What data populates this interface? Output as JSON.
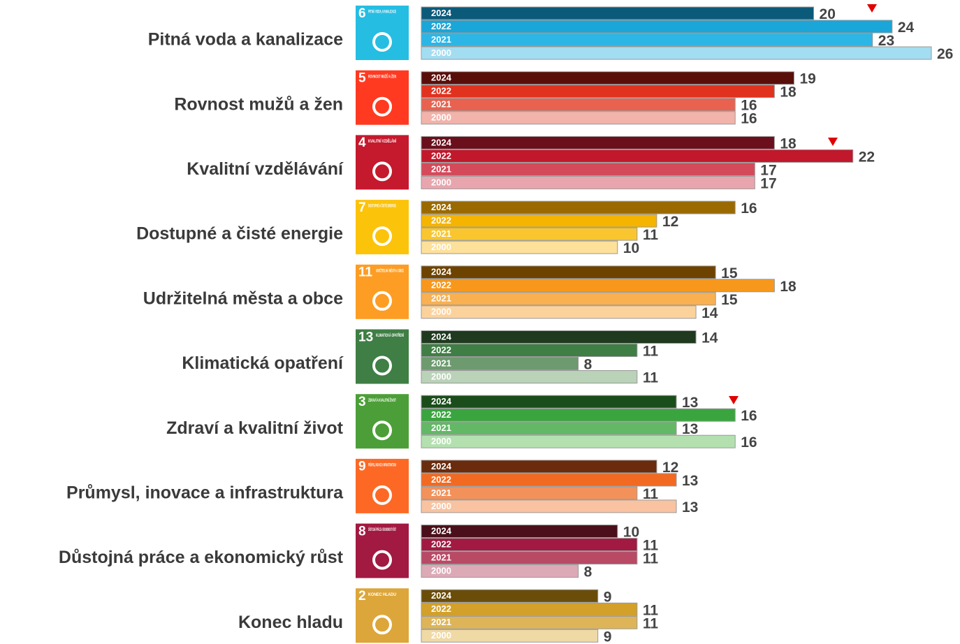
{
  "chart_data": {
    "type": "bar",
    "orientation": "horizontal",
    "categories": [
      "Pitná voda a kanalizace",
      "Rovnost mužů a žen",
      "Kvalitní vzdělávání",
      "Dostupné a čisté energie",
      "Udržitelná města a obce",
      "Klimatická opatření",
      "Zdraví a kvalitní život",
      "Průmysl, inovace a infrastruktura",
      "Důstojná práce a ekonomický růst",
      "Konec hladu"
    ],
    "series": [
      {
        "name": "2024",
        "values": [
          20,
          19,
          18,
          16,
          15,
          14,
          13,
          12,
          10,
          9
        ]
      },
      {
        "name": "2022",
        "values": [
          24,
          18,
          22,
          12,
          18,
          11,
          16,
          13,
          11,
          11
        ]
      },
      {
        "name": "2021",
        "values": [
          23,
          16,
          17,
          11,
          15,
          8,
          13,
          11,
          11,
          11
        ]
      },
      {
        "name": "2000",
        "values": [
          26,
          16,
          17,
          10,
          14,
          11,
          16,
          13,
          8,
          9
        ]
      }
    ],
    "colors": [
      [
        "#0b5a7a",
        "#1aa6d8",
        "#2cb6e6",
        "#a3ddf2"
      ],
      [
        "#5a0e0a",
        "#e0321f",
        "#e8624f",
        "#f2b3aa"
      ],
      [
        "#6b0f1c",
        "#c2182c",
        "#d44a5a",
        "#e8a5ad"
      ],
      [
        "#9a6a00",
        "#f5b400",
        "#f9c630",
        "#fde09a"
      ],
      [
        "#6e4300",
        "#f7981d",
        "#f9b050",
        "#fcd29c"
      ],
      [
        "#1f3a1f",
        "#3f7e44",
        "#6d9a6e",
        "#b9d2b8"
      ],
      [
        "#1a4d1a",
        "#3aa53e",
        "#62b865",
        "#b4e0b0"
      ],
      [
        "#6a2c0c",
        "#f26a22",
        "#f3915a",
        "#f9c3a1"
      ],
      [
        "#4a0f1a",
        "#a21942",
        "#b84a65",
        "#dcaab6"
      ],
      [
        "#6b4d0a",
        "#d3a029",
        "#ddb558",
        "#efd9a5"
      ]
    ],
    "icons": [
      {
        "number": "6",
        "text": "PITNÁ VODA, KANALIZACE",
        "color": "#26bde2"
      },
      {
        "number": "5",
        "text": "ROVNOST MUŽŮ A ŽEN",
        "color": "#ff3a21"
      },
      {
        "number": "4",
        "text": "KVALITNÍ VZDĚLÁNÍ",
        "color": "#c5192d"
      },
      {
        "number": "7",
        "text": "DOSTUPNÉ A ČISTÉ ENERGIE",
        "color": "#fcc30b"
      },
      {
        "number": "11",
        "text": "UDRŽITELNÁ MĚSTA A OBCE",
        "color": "#fd9d24"
      },
      {
        "number": "13",
        "text": "KLIMATICKÁ OPATŘENÍ",
        "color": "#3f7e44"
      },
      {
        "number": "3",
        "text": "ZDRAVÍ A KVALITNÍ ŽIVOT",
        "color": "#4c9f38"
      },
      {
        "number": "9",
        "text": "PRŮMYSL, INOVACE A INFRASTRUKTURA",
        "color": "#fd6925"
      },
      {
        "number": "8",
        "text": "DŮSTOJNÁ PRÁCE A EKONOMICKÝ RŮST",
        "color": "#a21942"
      },
      {
        "number": "2",
        "text": "KONEC HLADU",
        "color": "#dda63a"
      }
    ],
    "xlim": [
      0,
      26
    ]
  }
}
